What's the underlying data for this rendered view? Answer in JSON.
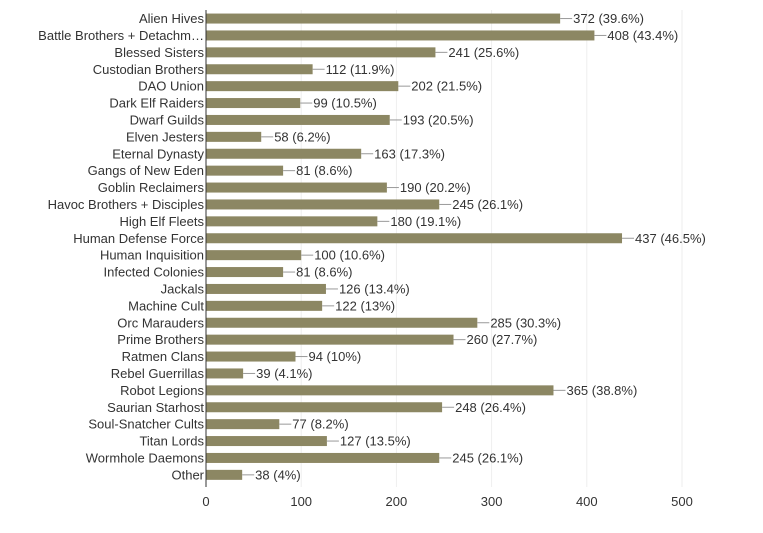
{
  "chart_data": {
    "type": "bar",
    "orientation": "horizontal",
    "categories": [
      "Alien Hives",
      "Battle Brothers + Detachm…",
      "Blessed Sisters",
      "Custodian Brothers",
      "DAO Union",
      "Dark Elf Raiders",
      "Dwarf Guilds",
      "Elven Jesters",
      "Eternal Dynasty",
      "Gangs of New Eden",
      "Goblin Reclaimers",
      "Havoc Brothers + Disciples",
      "High Elf Fleets",
      "Human Defense Force",
      "Human Inquisition",
      "Infected Colonies",
      "Jackals",
      "Machine Cult",
      "Orc Marauders",
      "Prime Brothers",
      "Ratmen Clans",
      "Rebel Guerrillas",
      "Robot Legions",
      "Saurian Starhost",
      "Soul-Snatcher Cults",
      "Titan Lords",
      "Wormhole Daemons",
      "Other"
    ],
    "values": [
      372,
      408,
      241,
      112,
      202,
      99,
      193,
      58,
      163,
      81,
      190,
      245,
      180,
      437,
      100,
      81,
      126,
      122,
      285,
      260,
      94,
      39,
      365,
      248,
      77,
      127,
      245,
      38
    ],
    "data_labels": [
      "372 (39.6%)",
      "408 (43.4%)",
      "241 (25.6%)",
      "112 (11.9%)",
      "202 (21.5%)",
      "99 (10.5%)",
      "193 (20.5%)",
      "58 (6.2%)",
      "163 (17.3%)",
      "81 (8.6%)",
      "190 (20.2%)",
      "245 (26.1%)",
      "180 (19.1%)",
      "437 (46.5%)",
      "100 (10.6%)",
      "81 (8.6%)",
      "126 (13.4%)",
      "122 (13%)",
      "285 (30.3%)",
      "260 (27.7%)",
      "94 (10%)",
      "39 (4.1%)",
      "365 (38.8%)",
      "248 (26.4%)",
      "77 (8.2%)",
      "127 (13.5%)",
      "245 (26.1%)",
      "38 (4%)"
    ],
    "x_ticks": [
      "0",
      "100",
      "200",
      "300",
      "400",
      "500"
    ],
    "xlim": [
      0,
      500
    ],
    "title": "",
    "xlabel": "",
    "ylabel": "",
    "grid": "vertical",
    "legend": "none",
    "colors": {
      "bar": "#8c8763",
      "text": "#333333",
      "grid": "#eeeeee",
      "axis": "#333333",
      "leader": "#999999"
    }
  }
}
